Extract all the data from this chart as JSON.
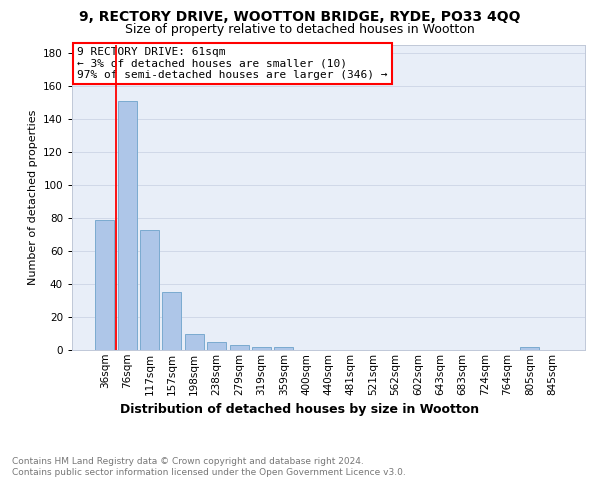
{
  "title": "9, RECTORY DRIVE, WOOTTON BRIDGE, RYDE, PO33 4QQ",
  "subtitle": "Size of property relative to detached houses in Wootton",
  "xlabel": "Distribution of detached houses by size in Wootton",
  "ylabel": "Number of detached properties",
  "categories": [
    "36sqm",
    "76sqm",
    "117sqm",
    "157sqm",
    "198sqm",
    "238sqm",
    "279sqm",
    "319sqm",
    "359sqm",
    "400sqm",
    "440sqm",
    "481sqm",
    "521sqm",
    "562sqm",
    "602sqm",
    "643sqm",
    "683sqm",
    "724sqm",
    "764sqm",
    "805sqm",
    "845sqm"
  ],
  "values": [
    79,
    151,
    73,
    35,
    10,
    5,
    3,
    2,
    2,
    0,
    0,
    0,
    0,
    0,
    0,
    0,
    0,
    0,
    0,
    2,
    0
  ],
  "bar_color": "#aec6e8",
  "bar_edge_color": "#7aaad0",
  "grid_color": "#d0d8e8",
  "background_color": "#e8eef8",
  "annotation_text": "9 RECTORY DRIVE: 61sqm\n← 3% of detached houses are smaller (10)\n97% of semi-detached houses are larger (346) →",
  "ylim": [
    0,
    185
  ],
  "yticks": [
    0,
    20,
    40,
    60,
    80,
    100,
    120,
    140,
    160,
    180
  ],
  "footnote": "Contains HM Land Registry data © Crown copyright and database right 2024.\nContains public sector information licensed under the Open Government Licence v3.0.",
  "title_fontsize": 10,
  "subtitle_fontsize": 9,
  "xlabel_fontsize": 9,
  "ylabel_fontsize": 8,
  "tick_fontsize": 7.5,
  "annot_fontsize": 8,
  "footnote_fontsize": 6.5
}
